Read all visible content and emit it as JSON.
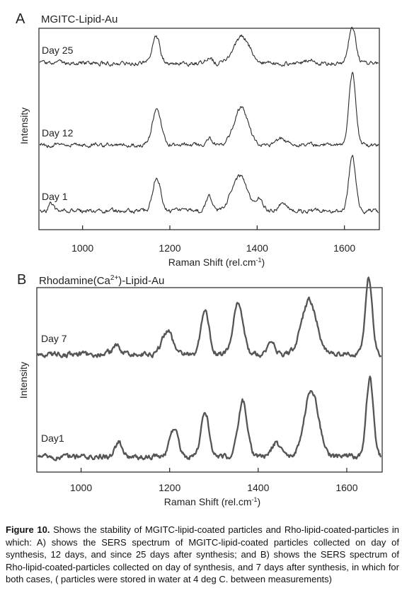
{
  "chart_data": [
    {
      "type": "line",
      "panel_letter": "A",
      "title": "MGITC-Lipid-Au",
      "xlabel": "Raman Shift (rel.cm",
      "xlabel_sup": "-1",
      "xlabel_end": ")",
      "ylabel": "Intensity",
      "xlim": [
        900,
        1680
      ],
      "xticks": [
        1000,
        1200,
        1400,
        1600
      ],
      "series": [
        {
          "name": "Day 25",
          "baseline": 0.12,
          "peaks": [
            [
              1168,
              0.55,
              9
            ],
            [
              1290,
              0.12,
              7
            ],
            [
              1365,
              0.55,
              18
            ],
            [
              1520,
              0.08,
              10
            ],
            [
              1618,
              0.75,
              8
            ]
          ]
        },
        {
          "name": "Day 12",
          "baseline": 0.1,
          "peaks": [
            [
              1170,
              0.5,
              10
            ],
            [
              1290,
              0.1,
              7
            ],
            [
              1363,
              0.52,
              16
            ],
            [
              1455,
              0.1,
              10
            ],
            [
              1618,
              1.0,
              8
            ]
          ]
        },
        {
          "name": "Day 1",
          "baseline": 0.08,
          "peaks": [
            [
              928,
              0.15,
              5
            ],
            [
              1170,
              0.6,
              9
            ],
            [
              1290,
              0.28,
              7
            ],
            [
              1360,
              0.62,
              18
            ],
            [
              1405,
              0.22,
              8
            ],
            [
              1460,
              0.14,
              10
            ],
            [
              1618,
              0.95,
              8
            ]
          ]
        }
      ]
    },
    {
      "type": "line",
      "panel_letter": "B",
      "title_pre": "Rhodamine(Ca",
      "title_sup": "2+",
      "title_post": ")-Lipid-Au",
      "xlabel": "Raman Shift (rel.cm",
      "xlabel_sup": "-1",
      "xlabel_end": ")",
      "ylabel": "Intensity",
      "xlim": [
        900,
        1680
      ],
      "xticks": [
        1000,
        1200,
        1400,
        1600
      ],
      "series": [
        {
          "name": "Day 7",
          "baseline": 0.1,
          "peaks": [
            [
              1080,
              0.1,
              10
            ],
            [
              1195,
              0.3,
              12
            ],
            [
              1280,
              0.55,
              9
            ],
            [
              1355,
              0.68,
              11
            ],
            [
              1430,
              0.12,
              10
            ],
            [
              1515,
              0.7,
              17
            ],
            [
              1650,
              1.0,
              8
            ]
          ]
        },
        {
          "name": "Day1",
          "baseline": 0.05,
          "peaks": [
            [
              1085,
              0.18,
              8
            ],
            [
              1210,
              0.35,
              10
            ],
            [
              1280,
              0.58,
              9
            ],
            [
              1365,
              0.7,
              10
            ],
            [
              1440,
              0.18,
              10
            ],
            [
              1520,
              0.85,
              16
            ],
            [
              1652,
              1.0,
              8
            ]
          ]
        }
      ]
    }
  ],
  "caption": {
    "label": "Figure 10.",
    "text": " Shows the stability of MGITC-lipid-coated particles and Rho-lipid-coated-particles in which: A) shows the SERS spectrum of MGITC-lipid-coated particles collected on day of synthesis, 12 days, and since 25 days after synthesis; and B) shows the SERS spectrum of Rho-lipid-coated-particles collected on day of synthesis, and 7 days after synthesis, in which for both cases, ( particles were stored in water at 4 deg C. between measurements)"
  }
}
